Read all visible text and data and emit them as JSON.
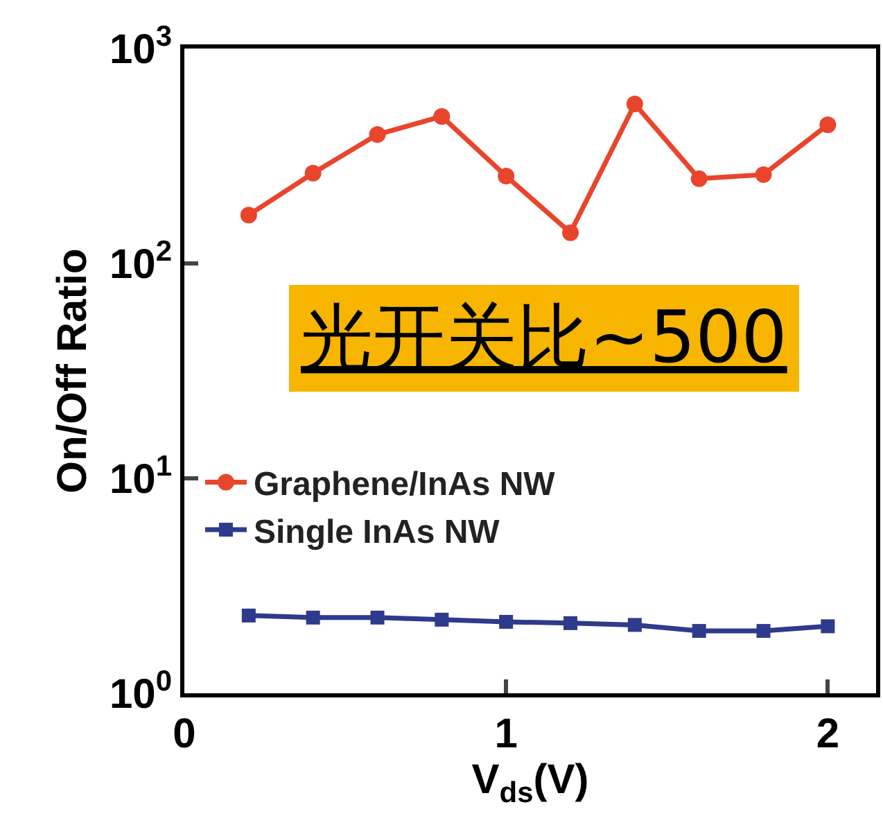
{
  "chart_data": {
    "type": "line",
    "xlabel": "V$_{ds}$(V)",
    "ylabel": "On/Off Ratio",
    "x": [
      0.2,
      0.4,
      0.6,
      0.8,
      1.0,
      1.2,
      1.4,
      1.6,
      1.8,
      2.0
    ],
    "series": [
      {
        "name": "Graphene/InAs NW",
        "color": "#e8452c",
        "marker": "circle",
        "values": [
          168,
          263,
          398,
          483,
          255,
          139,
          552,
          248,
          259,
          442
        ]
      },
      {
        "name": "Single InAs NW",
        "color": "#2e3a8c",
        "marker": "square",
        "values": [
          2.3,
          2.25,
          2.25,
          2.2,
          2.15,
          2.12,
          2.08,
          1.95,
          1.95,
          2.05
        ]
      }
    ],
    "log": "y",
    "xlim": [
      0,
      2.15
    ],
    "xticks": [
      0,
      1,
      2
    ],
    "ylim": [
      1,
      1000
    ],
    "yticks": [
      {
        "value": 1,
        "label": "10$^{0}$"
      },
      {
        "value": 10,
        "label": "10$^{1}$"
      },
      {
        "value": 100,
        "label": "10$^{2}$"
      },
      {
        "value": 1000,
        "label": "10$^{3}$"
      }
    ],
    "legend": "left",
    "line_style": "solid",
    "annotations": [
      "光开关比~500"
    ]
  }
}
